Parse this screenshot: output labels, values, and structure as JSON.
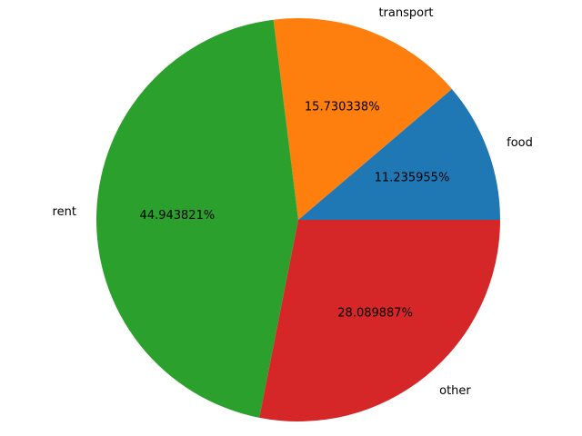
{
  "chart_data": {
    "type": "pie",
    "categories": [
      "food",
      "transport",
      "rent",
      "other"
    ],
    "values": [
      11.235955,
      15.730338,
      44.943821,
      28.089887
    ],
    "pct_labels": [
      "11.235955%",
      "15.730338%",
      "44.943821%",
      "28.089887%"
    ],
    "colors": [
      "#1f77b4",
      "#ff7f0e",
      "#2ca02c",
      "#d62728"
    ],
    "start_angle_deg": 0,
    "direction": "counterclockwise"
  }
}
